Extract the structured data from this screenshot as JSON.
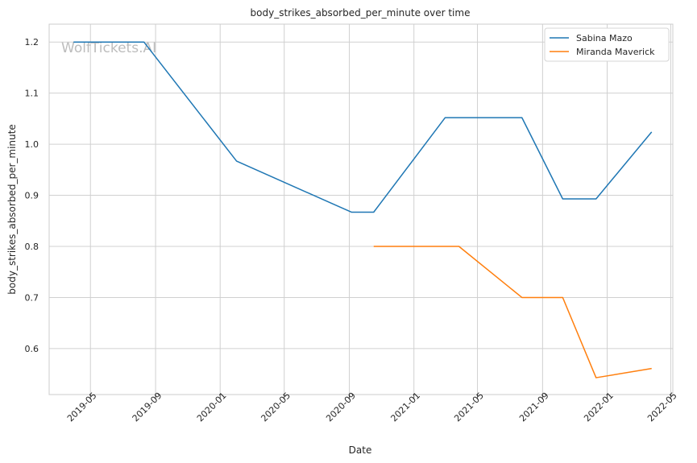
{
  "watermark": "WolfTickets.AI",
  "chart_data": {
    "type": "line",
    "title": "body_strikes_absorbed_per_minute over time",
    "xlabel": "Date",
    "ylabel": "body_strikes_absorbed_per_minute",
    "xlim": [
      "2019-02-12",
      "2022-05-05"
    ],
    "ylim": [
      0.51,
      1.235
    ],
    "x_ticks": [
      "2019-05-01",
      "2019-09-01",
      "2020-01-01",
      "2020-05-01",
      "2020-09-01",
      "2021-01-01",
      "2021-05-01",
      "2021-09-01",
      "2022-01-01",
      "2022-05-01"
    ],
    "x_tick_labels": [
      "2019-05",
      "2019-09",
      "2020-01",
      "2020-05",
      "2020-09",
      "2021-01",
      "2021-05",
      "2021-09",
      "2022-01",
      "2022-05"
    ],
    "y_ticks": [
      0.6,
      0.7,
      0.8,
      0.9,
      1.0,
      1.1,
      1.2
    ],
    "y_tick_labels": [
      "0.6",
      "0.7",
      "0.8",
      "0.9",
      "1.0",
      "1.1",
      "1.2"
    ],
    "grid": true,
    "legend_position": "top-right",
    "series": [
      {
        "name": "Sabina Mazo",
        "color": "#1f77b4",
        "points": [
          {
            "x": "2019-03-30",
            "y": 1.2
          },
          {
            "x": "2019-08-10",
            "y": 1.2
          },
          {
            "x": "2020-02-01",
            "y": 0.967
          },
          {
            "x": "2020-09-05",
            "y": 0.867
          },
          {
            "x": "2020-10-17",
            "y": 0.867
          },
          {
            "x": "2021-03-01",
            "y": 1.052
          },
          {
            "x": "2021-07-24",
            "y": 1.052
          },
          {
            "x": "2021-10-09",
            "y": 0.893
          },
          {
            "x": "2021-12-11",
            "y": 0.893
          },
          {
            "x": "2022-03-26",
            "y": 1.024
          }
        ]
      },
      {
        "name": "Miranda Maverick",
        "color": "#ff7f0e",
        "points": [
          {
            "x": "2020-10-17",
            "y": 0.8
          },
          {
            "x": "2021-03-27",
            "y": 0.8
          },
          {
            "x": "2021-07-24",
            "y": 0.7
          },
          {
            "x": "2021-10-09",
            "y": 0.7
          },
          {
            "x": "2021-12-11",
            "y": 0.543
          },
          {
            "x": "2022-03-26",
            "y": 0.561
          }
        ]
      }
    ]
  }
}
